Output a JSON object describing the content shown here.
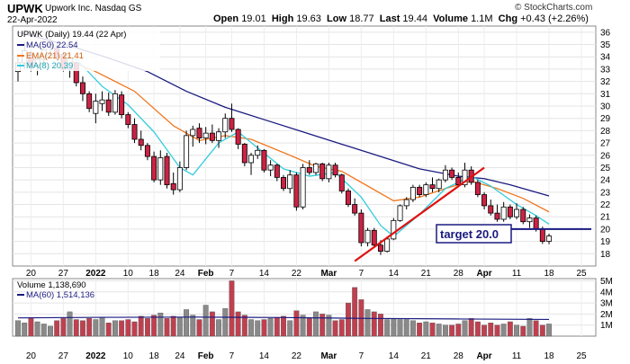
{
  "header": {
    "symbol": "UPWK",
    "company": "Upwork Inc.  Nasdaq GS",
    "date": "22-Apr-2022",
    "open_label": "Open",
    "open": "19.01",
    "high_label": "High",
    "high": "19.63",
    "low_label": "Low",
    "low": "18.77",
    "last_label": "Last",
    "last": "19.44",
    "volume_label": "Volume",
    "volume": "1.1M",
    "chg_label": "Chg",
    "chg": "+0.43 (+2.26%)",
    "credit": "© StockCharts.com"
  },
  "legend": {
    "price": "UPWK (Daily) 19.44 (22 Apr)",
    "ma50": "MA(50) 22.54",
    "ema21": "EMA(21) 21.41",
    "ma8": "MA(8) 20.39",
    "volume": "Volume 1,138,690",
    "ma60": "MA(60) 1,514,136"
  },
  "annotation": {
    "text": "target 20.0"
  },
  "colors": {
    "up": "#ffffff",
    "down": "#cc2244",
    "candle_edge": "#000000",
    "ma50": "#1a1a80",
    "ema21": "#f07820",
    "ma8": "#33ccdd",
    "vol_up": "#8a8a8a",
    "vol_down": "#c04050",
    "vol_ma": "#1a1a80",
    "trendline": "#e01010",
    "target": "#1a1a80"
  },
  "chart_data": [
    {
      "type": "candlestick",
      "title": "UPWK (Daily)",
      "ylim": [
        17,
        36.5
      ],
      "y_ticks": [
        18,
        19,
        20,
        21,
        22,
        23,
        24,
        25,
        26,
        27,
        28,
        29,
        30,
        31,
        32,
        33,
        34,
        35,
        36
      ],
      "x_ticks": [
        "20",
        "27",
        "2022",
        "10",
        "18",
        "24",
        "Feb",
        "7",
        "14",
        "22",
        "Mar",
        "7",
        "14",
        "21",
        "28",
        "Apr",
        "11",
        "18",
        "25"
      ],
      "candles": [
        [
          32.8,
          34.0,
          32.0,
          33.5
        ],
        [
          33.5,
          35.2,
          33.0,
          34.5
        ],
        [
          34.2,
          34.5,
          32.8,
          33.2
        ],
        [
          33.3,
          34.0,
          32.5,
          33.8
        ],
        [
          33.8,
          35.0,
          33.4,
          34.6
        ],
        [
          34.8,
          35.6,
          34.2,
          35.0
        ],
        [
          34.7,
          35.0,
          33.7,
          34.0
        ],
        [
          34.2,
          34.4,
          32.8,
          33.0
        ],
        [
          33.0,
          34.4,
          32.3,
          33.9
        ],
        [
          33.5,
          33.6,
          31.6,
          31.9
        ],
        [
          31.9,
          32.4,
          30.4,
          31.0
        ],
        [
          31.0,
          31.2,
          29.5,
          29.8
        ],
        [
          29.4,
          31.0,
          28.6,
          30.4
        ],
        [
          30.2,
          31.2,
          29.6,
          30.5
        ],
        [
          30.5,
          31.1,
          29.2,
          29.5
        ],
        [
          29.5,
          31.3,
          29.3,
          31.0
        ],
        [
          30.9,
          31.2,
          29.0,
          29.3
        ],
        [
          29.3,
          29.5,
          28.2,
          28.5
        ],
        [
          28.5,
          29.0,
          27.0,
          27.3
        ],
        [
          27.3,
          28.0,
          26.4,
          26.8
        ],
        [
          26.8,
          27.0,
          25.6,
          25.9
        ],
        [
          25.9,
          26.3,
          23.8,
          24.0
        ],
        [
          24.0,
          26.4,
          23.6,
          25.8
        ],
        [
          25.9,
          26.2,
          23.3,
          23.6
        ],
        [
          23.7,
          24.6,
          22.8,
          23.2
        ],
        [
          23.2,
          25.5,
          23.0,
          25.0
        ],
        [
          25.0,
          28.0,
          24.8,
          27.6
        ],
        [
          27.6,
          28.4,
          26.7,
          28.1
        ],
        [
          28.2,
          28.6,
          27.0,
          27.4
        ],
        [
          27.4,
          28.3,
          26.9,
          27.8
        ],
        [
          27.8,
          28.5,
          27.0,
          27.2
        ],
        [
          27.2,
          28.2,
          26.6,
          27.9
        ],
        [
          27.9,
          29.4,
          27.4,
          29.0
        ],
        [
          29.0,
          30.2,
          27.9,
          28.1
        ],
        [
          28.1,
          28.2,
          26.5,
          26.9
        ],
        [
          26.9,
          27.0,
          25.1,
          25.4
        ],
        [
          25.4,
          26.2,
          24.4,
          26.0
        ],
        [
          26.0,
          26.8,
          25.7,
          26.4
        ],
        [
          26.4,
          26.5,
          24.6,
          24.8
        ],
        [
          24.8,
          25.6,
          24.3,
          25.2
        ],
        [
          25.2,
          25.3,
          23.9,
          24.2
        ],
        [
          24.2,
          24.4,
          23.1,
          23.3
        ],
        [
          23.3,
          24.8,
          22.9,
          24.4
        ],
        [
          24.4,
          24.6,
          21.5,
          21.8
        ],
        [
          21.8,
          25.3,
          21.6,
          25.0
        ],
        [
          25.0,
          25.6,
          24.4,
          24.6
        ],
        [
          24.6,
          25.4,
          24.4,
          25.3
        ],
        [
          25.3,
          25.4,
          23.9,
          24.1
        ],
        [
          24.1,
          25.4,
          23.8,
          25.2
        ],
        [
          25.2,
          25.4,
          24.2,
          24.4
        ],
        [
          24.4,
          24.5,
          22.9,
          23.1
        ],
        [
          23.1,
          23.3,
          21.8,
          22.0
        ],
        [
          22.0,
          22.5,
          21.1,
          21.3
        ],
        [
          21.3,
          21.6,
          18.6,
          18.9
        ],
        [
          18.9,
          20.1,
          18.6,
          19.9
        ],
        [
          19.9,
          20.1,
          18.5,
          18.7
        ],
        [
          18.7,
          19.1,
          17.9,
          18.2
        ],
        [
          18.2,
          19.4,
          18.1,
          19.2
        ],
        [
          19.2,
          20.9,
          19.1,
          20.7
        ],
        [
          20.7,
          22.0,
          20.6,
          21.9
        ],
        [
          21.9,
          22.6,
          21.6,
          22.4
        ],
        [
          22.4,
          23.6,
          22.2,
          23.4
        ],
        [
          23.4,
          23.6,
          22.6,
          22.8
        ],
        [
          22.8,
          23.8,
          22.6,
          23.6
        ],
        [
          23.6,
          24.2,
          23.0,
          23.3
        ],
        [
          23.3,
          24.1,
          23.0,
          24.0
        ],
        [
          24.0,
          25.2,
          23.8,
          24.8
        ],
        [
          24.8,
          25.0,
          24.0,
          24.2
        ],
        [
          24.2,
          24.6,
          23.4,
          23.6
        ],
        [
          23.6,
          25.4,
          23.4,
          24.8
        ],
        [
          24.8,
          25.1,
          23.6,
          23.8
        ],
        [
          23.8,
          24.0,
          22.6,
          22.8
        ],
        [
          22.8,
          23.0,
          21.6,
          21.9
        ],
        [
          21.9,
          22.4,
          21.1,
          21.3
        ],
        [
          21.3,
          22.0,
          20.6,
          20.8
        ],
        [
          20.8,
          22.2,
          20.6,
          21.8
        ],
        [
          21.8,
          22.0,
          20.8,
          21.0
        ],
        [
          21.0,
          22.1,
          20.8,
          21.6
        ],
        [
          21.6,
          21.8,
          20.4,
          20.6
        ],
        [
          20.6,
          21.2,
          20.1,
          20.9
        ],
        [
          20.9,
          21.1,
          19.8,
          20.0
        ],
        [
          20.0,
          20.2,
          18.8,
          19.0
        ],
        [
          19.01,
          19.63,
          18.77,
          19.44
        ]
      ],
      "ma50": [
        [
          0,
          null
        ]
      ],
      "series": [
        {
          "name": "MA(50) 22.54",
          "points": [
            [
              0,
              36.0
            ],
            [
              8,
              34.9
            ],
            [
              14,
              33.9
            ],
            [
              20,
              32.8
            ],
            [
              26,
              31.2
            ],
            [
              32,
              29.9
            ],
            [
              38,
              28.9
            ],
            [
              44,
              27.9
            ],
            [
              50,
              26.9
            ],
            [
              56,
              25.9
            ],
            [
              62,
              24.9
            ],
            [
              68,
              24.3
            ],
            [
              72,
              24.1
            ],
            [
              76,
              23.6
            ],
            [
              82,
              22.7
            ]
          ]
        },
        {
          "name": "EMA(21) 21.41",
          "points": [
            [
              0,
              33.5
            ],
            [
              6,
              34.1
            ],
            [
              12,
              32.8
            ],
            [
              18,
              31.2
            ],
            [
              24,
              28.4
            ],
            [
              28,
              27.2
            ],
            [
              32,
              27.6
            ],
            [
              36,
              27.3
            ],
            [
              42,
              26.0
            ],
            [
              46,
              25.1
            ],
            [
              50,
              24.7
            ],
            [
              54,
              23.5
            ],
            [
              58,
              22.3
            ],
            [
              62,
              22.6
            ],
            [
              66,
              23.3
            ],
            [
              70,
              23.9
            ],
            [
              74,
              23.3
            ],
            [
              78,
              22.5
            ],
            [
              82,
              21.4
            ]
          ]
        },
        {
          "name": "MA(8) 20.39",
          "points": [
            [
              0,
              33.5
            ],
            [
              5,
              34.2
            ],
            [
              9,
              33.8
            ],
            [
              13,
              31.6
            ],
            [
              17,
              30.1
            ],
            [
              21,
              27.9
            ],
            [
              25,
              25.0
            ],
            [
              27,
              24.4
            ],
            [
              31,
              27.0
            ],
            [
              34,
              27.9
            ],
            [
              37,
              26.6
            ],
            [
              41,
              24.9
            ],
            [
              45,
              24.3
            ],
            [
              49,
              24.6
            ],
            [
              53,
              22.6
            ],
            [
              56,
              20.3
            ],
            [
              58,
              19.4
            ],
            [
              62,
              21.2
            ],
            [
              66,
              23.3
            ],
            [
              70,
              24.3
            ],
            [
              73,
              23.5
            ],
            [
              77,
              22.0
            ],
            [
              80,
              21.1
            ],
            [
              82,
              20.4
            ]
          ]
        }
      ]
    },
    {
      "type": "bar",
      "title": "Volume",
      "ylim": [
        0,
        5.2
      ],
      "y_ticks": [
        "1M",
        "2M",
        "3M",
        "4M",
        "5M"
      ],
      "values_millions": [
        1.4,
        1.2,
        1.6,
        1.3,
        1.1,
        0.9,
        1.4,
        1.6,
        2.2,
        1.5,
        1.4,
        1.6,
        1.5,
        1.7,
        1.2,
        1.4,
        1.4,
        1.5,
        1.3,
        1.8,
        1.6,
        1.9,
        2.1,
        1.6,
        1.8,
        1.7,
        2.4,
        1.9,
        1.5,
        2.8,
        2.2,
        1.5,
        2.5,
        5.0,
        2.2,
        1.9,
        1.5,
        1.4,
        1.5,
        1.6,
        1.7,
        1.8,
        1.4,
        2.3,
        1.9,
        1.6,
        2.2,
        2.0,
        1.9,
        1.4,
        1.5,
        3.0,
        4.4,
        3.3,
        2.4,
        2.2,
        2.0,
        1.5,
        1.6,
        1.5,
        1.5,
        1.4,
        1.2,
        1.3,
        1.2,
        1.1,
        1.0,
        1.0,
        1.1,
        1.4,
        1.6,
        1.3,
        1.0,
        1.2,
        1.0,
        1.1,
        1.3,
        1.0,
        0.9,
        1.6,
        1.4,
        1.0,
        1.1
      ],
      "ma60": [
        1.65,
        1.7,
        1.72,
        1.68,
        1.6,
        1.55,
        1.51
      ]
    }
  ]
}
